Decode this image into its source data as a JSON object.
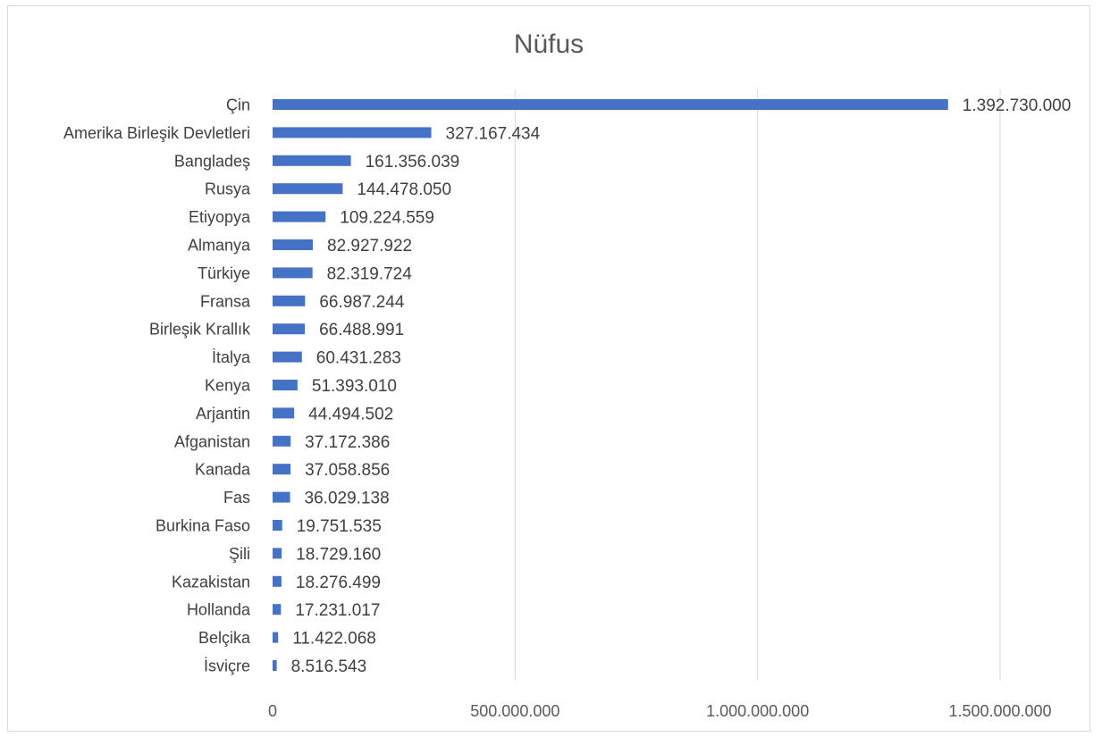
{
  "chart_data": {
    "type": "bar",
    "orientation": "horizontal",
    "title": "Nüfus",
    "xlabel": "",
    "ylabel": "",
    "xlim": [
      0,
      1500000000
    ],
    "x_ticks": [
      {
        "value": 0,
        "label": "0"
      },
      {
        "value": 500000000,
        "label": "500.000.000"
      },
      {
        "value": 1000000000,
        "label": "1.000.000.000"
      },
      {
        "value": 1500000000,
        "label": "1.500.000.000"
      }
    ],
    "grid": true,
    "legend": "none",
    "bar_color": "#4472C4",
    "data": [
      {
        "category": "Çin",
        "value": 1392730000,
        "label": "1.392.730.000"
      },
      {
        "category": "Amerika Birleşik Devletleri",
        "value": 327167434,
        "label": "327.167.434"
      },
      {
        "category": "Bangladeş",
        "value": 161356039,
        "label": "161.356.039"
      },
      {
        "category": "Rusya",
        "value": 144478050,
        "label": "144.478.050"
      },
      {
        "category": "Etiyopya",
        "value": 109224559,
        "label": "109.224.559"
      },
      {
        "category": "Almanya",
        "value": 82927922,
        "label": "82.927.922"
      },
      {
        "category": "Türkiye",
        "value": 82319724,
        "label": "82.319.724"
      },
      {
        "category": "Fransa",
        "value": 66987244,
        "label": "66.987.244"
      },
      {
        "category": "Birleşik Krallık",
        "value": 66488991,
        "label": "66.488.991"
      },
      {
        "category": "İtalya",
        "value": 60431283,
        "label": "60.431.283"
      },
      {
        "category": "Kenya",
        "value": 51393010,
        "label": "51.393.010"
      },
      {
        "category": "Arjantin",
        "value": 44494502,
        "label": "44.494.502"
      },
      {
        "category": "Afganistan",
        "value": 37172386,
        "label": "37.172.386"
      },
      {
        "category": "Kanada",
        "value": 37058856,
        "label": "37.058.856"
      },
      {
        "category": "Fas",
        "value": 36029138,
        "label": "36.029.138"
      },
      {
        "category": "Burkina Faso",
        "value": 19751535,
        "label": "19.751.535"
      },
      {
        "category": "Şili",
        "value": 18729160,
        "label": "18.729.160"
      },
      {
        "category": "Kazakistan",
        "value": 18276499,
        "label": "18.276.499"
      },
      {
        "category": "Hollanda",
        "value": 17231017,
        "label": "17.231.017"
      },
      {
        "category": "Belçika",
        "value": 11422068,
        "label": "11.422.068"
      },
      {
        "category": "İsviçre",
        "value": 8516543,
        "label": "8.516.543"
      }
    ]
  }
}
